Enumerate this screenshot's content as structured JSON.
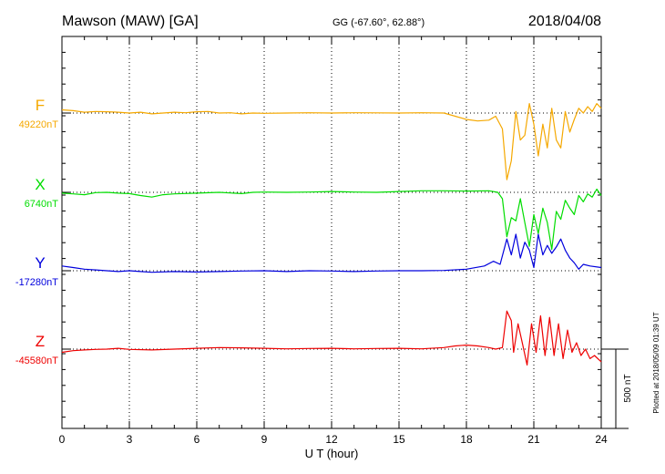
{
  "header": {
    "station": "Mawson (MAW)  [GA]",
    "coords": "GG (-67.60°,  62.88°)",
    "date": "2018/04/08"
  },
  "footer_note": "Plotted at 2018/05/09 01:39 UT",
  "scale_label": "500 nT",
  "chart_data": {
    "type": "line",
    "xlabel": "U T (hour)",
    "x_ticks": [
      "0",
      "3",
      "6",
      "9",
      "12",
      "15",
      "18",
      "21",
      "24"
    ],
    "xlim": [
      0,
      24
    ],
    "scale_bar_nT": 500,
    "grid": "dotted vertical every 3 h; dotted baseline per trace",
    "series": [
      {
        "name": "F",
        "baseline_label": "49220nT",
        "baseline_nT": 49220,
        "color": "#f5a800",
        "points": [
          [
            0,
            49240
          ],
          [
            0.5,
            49235
          ],
          [
            1,
            49225
          ],
          [
            1.5,
            49230
          ],
          [
            2,
            49228
          ],
          [
            2.5,
            49225
          ],
          [
            3,
            49220
          ],
          [
            3.5,
            49225
          ],
          [
            4,
            49215
          ],
          [
            4.5,
            49220
          ],
          [
            5,
            49225
          ],
          [
            5.5,
            49222
          ],
          [
            6,
            49228
          ],
          [
            6.5,
            49230
          ],
          [
            7,
            49220
          ],
          [
            7.5,
            49222
          ],
          [
            8,
            49215
          ],
          [
            8.5,
            49220
          ],
          [
            9,
            49218
          ],
          [
            10,
            49220
          ],
          [
            11,
            49222
          ],
          [
            12,
            49220
          ],
          [
            13,
            49222
          ],
          [
            14,
            49221
          ],
          [
            15,
            49220
          ],
          [
            16,
            49222
          ],
          [
            17,
            49220
          ],
          [
            17.5,
            49200
          ],
          [
            18,
            49180
          ],
          [
            18.5,
            49170
          ],
          [
            19,
            49175
          ],
          [
            19.3,
            49200
          ],
          [
            19.6,
            49120
          ],
          [
            19.8,
            48800
          ],
          [
            20,
            48920
          ],
          [
            20.2,
            49230
          ],
          [
            20.4,
            49050
          ],
          [
            20.6,
            49080
          ],
          [
            20.8,
            49280
          ],
          [
            21,
            49150
          ],
          [
            21.2,
            48950
          ],
          [
            21.4,
            49150
          ],
          [
            21.6,
            49000
          ],
          [
            21.8,
            49250
          ],
          [
            22,
            49050
          ],
          [
            22.2,
            49000
          ],
          [
            22.4,
            49230
          ],
          [
            22.6,
            49100
          ],
          [
            22.8,
            49180
          ],
          [
            23,
            49250
          ],
          [
            23.2,
            49220
          ],
          [
            23.4,
            49260
          ],
          [
            23.6,
            49230
          ],
          [
            23.8,
            49280
          ],
          [
            24,
            49250
          ]
        ]
      },
      {
        "name": "X",
        "baseline_label": "6740nT",
        "baseline_nT": 6740,
        "color": "#00dd00",
        "points": [
          [
            0,
            6735
          ],
          [
            0.5,
            6730
          ],
          [
            1,
            6725
          ],
          [
            1.5,
            6738
          ],
          [
            2,
            6740
          ],
          [
            2.5,
            6735
          ],
          [
            3,
            6732
          ],
          [
            3.5,
            6720
          ],
          [
            4,
            6710
          ],
          [
            4.5,
            6725
          ],
          [
            5,
            6730
          ],
          [
            6,
            6735
          ],
          [
            7,
            6740
          ],
          [
            8,
            6732
          ],
          [
            8.5,
            6740
          ],
          [
            9,
            6742
          ],
          [
            10,
            6740
          ],
          [
            11,
            6742
          ],
          [
            12,
            6745
          ],
          [
            13,
            6742
          ],
          [
            14,
            6740
          ],
          [
            15,
            6745
          ],
          [
            16,
            6750
          ],
          [
            17,
            6750
          ],
          [
            18,
            6748
          ],
          [
            19,
            6750
          ],
          [
            19.4,
            6740
          ],
          [
            19.6,
            6700
          ],
          [
            19.8,
            6460
          ],
          [
            20,
            6580
          ],
          [
            20.2,
            6560
          ],
          [
            20.4,
            6700
          ],
          [
            20.6,
            6550
          ],
          [
            20.8,
            6400
          ],
          [
            21,
            6600
          ],
          [
            21.2,
            6480
          ],
          [
            21.4,
            6640
          ],
          [
            21.6,
            6550
          ],
          [
            21.8,
            6380
          ],
          [
            22,
            6620
          ],
          [
            22.2,
            6570
          ],
          [
            22.4,
            6690
          ],
          [
            22.6,
            6640
          ],
          [
            22.8,
            6600
          ],
          [
            23,
            6720
          ],
          [
            23.2,
            6680
          ],
          [
            23.4,
            6730
          ],
          [
            23.6,
            6710
          ],
          [
            23.8,
            6760
          ],
          [
            24,
            6720
          ]
        ]
      },
      {
        "name": "Y",
        "baseline_label": "-17280nT",
        "baseline_nT": -17280,
        "color": "#0000dd",
        "points": [
          [
            0,
            -17250
          ],
          [
            0.5,
            -17260
          ],
          [
            1,
            -17270
          ],
          [
            1.5,
            -17275
          ],
          [
            2,
            -17280
          ],
          [
            2.5,
            -17285
          ],
          [
            3,
            -17280
          ],
          [
            3.5,
            -17285
          ],
          [
            4,
            -17290
          ],
          [
            5,
            -17285
          ],
          [
            6,
            -17288
          ],
          [
            7,
            -17285
          ],
          [
            8,
            -17282
          ],
          [
            9,
            -17280
          ],
          [
            10,
            -17285
          ],
          [
            11,
            -17280
          ],
          [
            12,
            -17282
          ],
          [
            13,
            -17285
          ],
          [
            14,
            -17282
          ],
          [
            15,
            -17280
          ],
          [
            16,
            -17280
          ],
          [
            17,
            -17278
          ],
          [
            18,
            -17270
          ],
          [
            18.8,
            -17250
          ],
          [
            19.2,
            -17220
          ],
          [
            19.5,
            -17240
          ],
          [
            19.8,
            -17080
          ],
          [
            20,
            -17180
          ],
          [
            20.2,
            -17050
          ],
          [
            20.4,
            -17200
          ],
          [
            20.6,
            -17100
          ],
          [
            20.8,
            -17150
          ],
          [
            21,
            -17260
          ],
          [
            21.2,
            -17050
          ],
          [
            21.4,
            -17180
          ],
          [
            21.6,
            -17120
          ],
          [
            21.8,
            -17170
          ],
          [
            22,
            -17130
          ],
          [
            22.2,
            -17080
          ],
          [
            22.4,
            -17150
          ],
          [
            22.6,
            -17200
          ],
          [
            22.8,
            -17230
          ],
          [
            23,
            -17270
          ],
          [
            23.2,
            -17240
          ],
          [
            23.5,
            -17250
          ],
          [
            24,
            -17260
          ]
        ]
      },
      {
        "name": "Z",
        "baseline_label": "-45580nT",
        "baseline_nT": -45580,
        "color": "#ee0000",
        "points": [
          [
            0,
            -45600
          ],
          [
            0.5,
            -45590
          ],
          [
            1,
            -45585
          ],
          [
            1.5,
            -45582
          ],
          [
            2,
            -45580
          ],
          [
            2.5,
            -45575
          ],
          [
            3,
            -45582
          ],
          [
            4,
            -45585
          ],
          [
            5,
            -45580
          ],
          [
            6,
            -45575
          ],
          [
            7,
            -45570
          ],
          [
            8,
            -45572
          ],
          [
            9,
            -45575
          ],
          [
            10,
            -45578
          ],
          [
            11,
            -45576
          ],
          [
            12,
            -45575
          ],
          [
            13,
            -45578
          ],
          [
            14,
            -45576
          ],
          [
            15,
            -45575
          ],
          [
            16,
            -45578
          ],
          [
            17,
            -45570
          ],
          [
            17.5,
            -45560
          ],
          [
            18,
            -45555
          ],
          [
            18.5,
            -45560
          ],
          [
            19,
            -45570
          ],
          [
            19.3,
            -45580
          ],
          [
            19.6,
            -45570
          ],
          [
            19.8,
            -45340
          ],
          [
            20,
            -45400
          ],
          [
            20.1,
            -45600
          ],
          [
            20.3,
            -45420
          ],
          [
            20.5,
            -45550
          ],
          [
            20.7,
            -45680
          ],
          [
            20.9,
            -45420
          ],
          [
            21.1,
            -45600
          ],
          [
            21.3,
            -45370
          ],
          [
            21.5,
            -45620
          ],
          [
            21.7,
            -45380
          ],
          [
            21.9,
            -45620
          ],
          [
            22.1,
            -45420
          ],
          [
            22.3,
            -45640
          ],
          [
            22.5,
            -45460
          ],
          [
            22.7,
            -45600
          ],
          [
            22.9,
            -45540
          ],
          [
            23.1,
            -45620
          ],
          [
            23.3,
            -45580
          ],
          [
            23.5,
            -45640
          ],
          [
            23.7,
            -45620
          ],
          [
            24,
            -45660
          ]
        ]
      }
    ]
  }
}
